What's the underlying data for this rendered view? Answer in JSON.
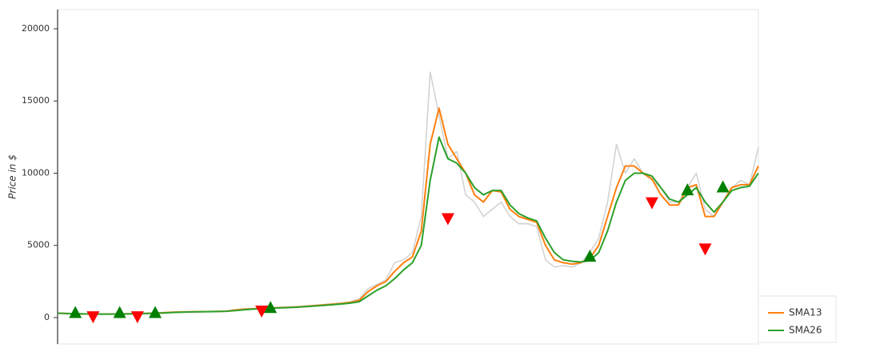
{
  "chart_data": {
    "type": "line",
    "y_axis_label": "Price in $",
    "ylim": [
      -1830,
      21330
    ],
    "yticks": [
      0,
      5000,
      10000,
      15000,
      20000
    ],
    "grid": false,
    "legend": "lower right",
    "series": [
      {
        "color": "#d3d3d3",
        "values": [
          300,
          280,
          260,
          250,
          240,
          240,
          250,
          260,
          270,
          280,
          300,
          320,
          360,
          380,
          400,
          400,
          410,
          420,
          430,
          450,
          550,
          600,
          620,
          650,
          680,
          700,
          720,
          750,
          800,
          850,
          900,
          950,
          1000,
          1100,
          1300,
          2000,
          2300,
          2600,
          3800,
          4000,
          4500,
          7000,
          17000,
          14000,
          11000,
          11500,
          8500,
          8000,
          7000,
          7500,
          8000,
          7000,
          6500,
          6500,
          6300,
          4000,
          3500,
          3600,
          3500,
          3800,
          4500,
          5500,
          8000,
          12000,
          10000,
          11000,
          10000,
          9500,
          9000,
          8000,
          8000,
          9000,
          10000,
          7500,
          7000,
          8000,
          9000,
          9500,
          9200,
          11800
        ]
      },
      {
        "name": "SMA13",
        "color": "#ff7f0e",
        "values": [
          300,
          280,
          260,
          250,
          245,
          240,
          245,
          255,
          265,
          275,
          290,
          310,
          340,
          370,
          390,
          400,
          405,
          415,
          425,
          440,
          520,
          580,
          610,
          640,
          670,
          690,
          710,
          740,
          780,
          830,
          880,
          930,
          980,
          1050,
          1200,
          1800,
          2200,
          2500,
          3200,
          3800,
          4200,
          6000,
          12000,
          14500,
          12000,
          11000,
          10000,
          8500,
          8000,
          8800,
          8700,
          7500,
          7000,
          6800,
          6600,
          5000,
          4000,
          3800,
          3700,
          3800,
          4100,
          5000,
          7000,
          9000,
          10500,
          10500,
          10000,
          9600,
          8500,
          7800,
          7800,
          9000,
          9200,
          7000,
          7000,
          8000,
          9000,
          9200,
          9200,
          10500
        ]
      },
      {
        "name": "SMA26",
        "color": "#2ca02c",
        "values": [
          300,
          285,
          270,
          255,
          245,
          240,
          242,
          250,
          258,
          268,
          280,
          295,
          320,
          350,
          375,
          390,
          400,
          410,
          420,
          432,
          480,
          540,
          590,
          620,
          650,
          670,
          690,
          720,
          760,
          800,
          840,
          890,
          940,
          1000,
          1100,
          1500,
          1900,
          2200,
          2700,
          3300,
          3800,
          5000,
          9500,
          12500,
          11000,
          10700,
          10000,
          9000,
          8500,
          8800,
          8800,
          7800,
          7200,
          6900,
          6700,
          5500,
          4500,
          4000,
          3900,
          3850,
          3950,
          4500,
          6000,
          8000,
          9500,
          10000,
          10000,
          9800,
          9000,
          8200,
          8000,
          8500,
          9000,
          8000,
          7300,
          8000,
          8800,
          9000,
          9100,
          10000
        ]
      },
      {
        "color": "#008000",
        "marker": "triangle-up",
        "values": [
          null,
          null,
          300,
          null,
          null,
          null,
          null,
          300,
          null,
          null,
          null,
          300,
          null,
          null,
          null,
          null,
          null,
          null,
          null,
          null,
          null,
          null,
          null,
          null,
          650,
          null,
          null,
          null,
          null,
          null,
          null,
          null,
          null,
          null,
          null,
          null,
          null,
          null,
          null,
          null,
          null,
          null,
          null,
          null,
          null,
          null,
          null,
          null,
          null,
          null,
          null,
          null,
          null,
          null,
          null,
          null,
          null,
          null,
          null,
          null,
          4200,
          null,
          null,
          null,
          null,
          null,
          null,
          null,
          null,
          null,
          null,
          8800,
          null,
          null,
          null,
          9000,
          null,
          null,
          null,
          null
        ]
      },
      {
        "color": "#ff0000",
        "marker": "triangle-down",
        "values": [
          null,
          null,
          null,
          null,
          100,
          null,
          null,
          null,
          null,
          100,
          null,
          null,
          null,
          null,
          null,
          null,
          null,
          null,
          null,
          null,
          null,
          null,
          null,
          500,
          null,
          null,
          null,
          null,
          null,
          null,
          null,
          null,
          null,
          null,
          null,
          null,
          null,
          null,
          null,
          null,
          null,
          null,
          null,
          null,
          6900,
          null,
          null,
          null,
          null,
          null,
          null,
          null,
          null,
          null,
          null,
          null,
          null,
          null,
          null,
          null,
          null,
          null,
          null,
          null,
          null,
          null,
          null,
          8000,
          null,
          null,
          null,
          null,
          null,
          4800,
          null,
          null,
          null,
          null,
          null,
          null
        ]
      }
    ]
  }
}
